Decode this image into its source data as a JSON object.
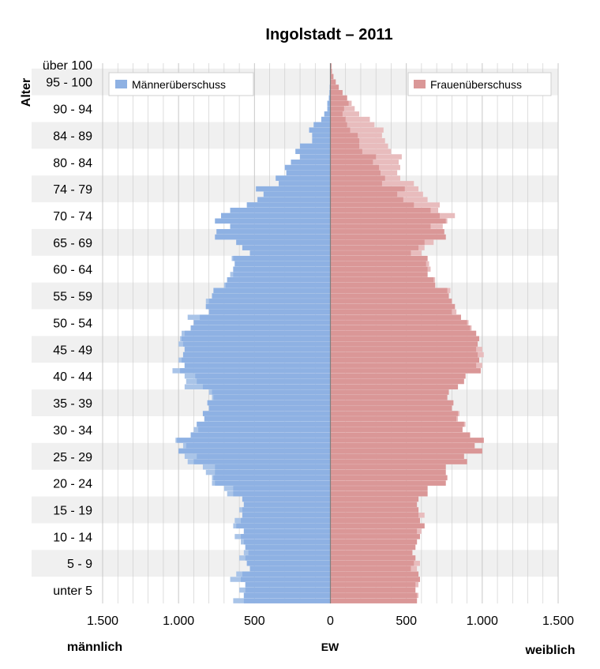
{
  "chart_data": {
    "type": "bar",
    "title": "Ingolstadt – 2011",
    "ylabel": "Alter",
    "xlabel": "EW",
    "left_label": "männlich",
    "right_label": "weiblich",
    "xlim": [
      -1500,
      1500
    ],
    "x_ticks": [
      -1500,
      -1000,
      -500,
      0,
      500,
      1000,
      1500
    ],
    "x_tick_labels": [
      "1.500",
      "1.000",
      "500",
      "0",
      "500",
      "1.000",
      "1.500"
    ],
    "age_group_labels": [
      "unter 5",
      "5 - 9",
      "10 - 14",
      "15 - 19",
      "20 - 24",
      "25 - 29",
      "30 - 34",
      "35 - 39",
      "40 - 44",
      "45 - 49",
      "50 - 54",
      "55 - 59",
      "60 - 64",
      "65 - 69",
      "70 - 74",
      "74 - 79",
      "80 - 84",
      "84 - 89",
      "90 - 94",
      "95 - 100",
      "über 100"
    ],
    "ages": [
      0,
      1,
      2,
      3,
      4,
      5,
      6,
      7,
      8,
      9,
      10,
      11,
      12,
      13,
      14,
      15,
      16,
      17,
      18,
      19,
      20,
      21,
      22,
      23,
      24,
      25,
      26,
      27,
      28,
      29,
      30,
      31,
      32,
      33,
      34,
      35,
      36,
      37,
      38,
      39,
      40,
      41,
      42,
      43,
      44,
      45,
      46,
      47,
      48,
      49,
      50,
      51,
      52,
      53,
      54,
      55,
      56,
      57,
      58,
      59,
      60,
      61,
      62,
      63,
      64,
      65,
      66,
      67,
      68,
      69,
      70,
      71,
      72,
      73,
      74,
      75,
      76,
      77,
      78,
      79,
      80,
      81,
      82,
      83,
      84,
      85,
      86,
      87,
      88,
      89,
      90,
      91,
      92,
      93,
      94,
      95,
      96,
      97,
      98,
      99,
      100
    ],
    "series": [
      {
        "name": "männlich",
        "color": "#a9c4e8",
        "values": [
          640,
          570,
          600,
          560,
          660,
          620,
          530,
          550,
          600,
          570,
          560,
          590,
          630,
          570,
          640,
          630,
          580,
          600,
          570,
          580,
          680,
          700,
          780,
          780,
          820,
          840,
          940,
          960,
          1000,
          970,
          1020,
          920,
          900,
          880,
          830,
          840,
          800,
          810,
          780,
          800,
          960,
          950,
          960,
          1040,
          960,
          1000,
          970,
          960,
          1000,
          990,
          980,
          920,
          900,
          940,
          800,
          820,
          820,
          780,
          770,
          700,
          680,
          660,
          640,
          630,
          650,
          530,
          580,
          620,
          760,
          750,
          660,
          760,
          720,
          660,
          550,
          480,
          440,
          490,
          340,
          360,
          290,
          300,
          260,
          200,
          230,
          200,
          120,
          120,
          140,
          110,
          60,
          40,
          20,
          20,
          10,
          6,
          4,
          2,
          2,
          1,
          1
        ]
      },
      {
        "name": "weiblich",
        "color": "#e8bcbd",
        "values": [
          570,
          580,
          560,
          580,
          590,
          580,
          570,
          590,
          560,
          540,
          560,
          570,
          590,
          600,
          620,
          590,
          620,
          580,
          570,
          580,
          640,
          640,
          760,
          770,
          760,
          760,
          900,
          880,
          1000,
          950,
          1010,
          920,
          870,
          890,
          840,
          850,
          800,
          810,
          770,
          780,
          840,
          880,
          890,
          990,
          1000,
          980,
          1010,
          1000,
          970,
          980,
          960,
          930,
          910,
          860,
          830,
          820,
          800,
          780,
          790,
          690,
          690,
          640,
          660,
          650,
          640,
          600,
          620,
          680,
          760,
          750,
          740,
          770,
          820,
          710,
          720,
          640,
          610,
          580,
          550,
          460,
          440,
          460,
          450,
          470,
          400,
          380,
          360,
          340,
          350,
          290,
          260,
          190,
          160,
          140,
          110,
          80,
          55,
          35,
          20,
          10,
          7,
          4,
          3,
          2,
          1
        ]
      },
      {
        "name": "Männerüberschuss",
        "color": "#8eb1e3",
        "values": [
          70,
          0,
          40,
          0,
          70,
          40,
          0,
          0,
          40,
          30,
          0,
          20,
          40,
          0,
          20,
          40,
          0,
          20,
          0,
          0,
          40,
          60,
          20,
          10,
          60,
          80,
          40,
          80,
          0,
          20,
          10,
          0,
          30,
          0,
          0,
          0,
          0,
          0,
          10,
          20,
          120,
          70,
          70,
          50,
          0,
          20,
          0,
          0,
          30,
          10,
          20,
          0,
          0,
          80,
          0,
          0,
          20,
          0,
          0,
          10,
          0,
          20,
          0,
          0,
          10,
          0,
          0,
          0,
          0,
          0,
          0,
          0,
          0,
          0,
          0,
          0,
          0,
          0,
          0,
          0,
          0,
          0,
          0,
          0,
          0,
          0,
          0,
          0,
          0,
          0,
          0,
          0,
          0,
          0,
          0,
          0,
          0,
          0,
          0,
          0,
          0
        ]
      },
      {
        "name": "Frauenüberschuss",
        "color": "#da9797",
        "values": [
          0,
          10,
          0,
          20,
          0,
          0,
          40,
          40,
          0,
          0,
          0,
          0,
          0,
          30,
          0,
          0,
          40,
          0,
          0,
          0,
          0,
          0,
          0,
          0,
          0,
          0,
          0,
          0,
          0,
          0,
          0,
          0,
          0,
          10,
          10,
          10,
          0,
          0,
          0,
          0,
          0,
          0,
          0,
          0,
          40,
          0,
          40,
          40,
          0,
          0,
          0,
          10,
          10,
          0,
          30,
          0,
          0,
          0,
          20,
          0,
          10,
          0,
          20,
          20,
          0,
          70,
          40,
          60,
          0,
          0,
          80,
          10,
          100,
          50,
          170,
          160,
          170,
          90,
          210,
          100,
          110,
          140,
          170,
          170,
          190,
          190,
          170,
          160,
          220,
          180,
          160,
          110,
          70,
          20,
          0,
          0,
          0,
          0,
          0,
          0,
          0
        ]
      }
    ],
    "legend": [
      "Männerüberschuss",
      "Frauenüberschuss"
    ],
    "legend_placement": "top",
    "grid": true
  },
  "colors": {
    "male_bar": "#a9c4e8",
    "male_excess": "#8eb1e3",
    "female_bar": "#e8bcbd",
    "female_excess": "#da9797",
    "band": "#f0f0f0",
    "grid": "#c8c8c8",
    "axis": "#808080"
  }
}
